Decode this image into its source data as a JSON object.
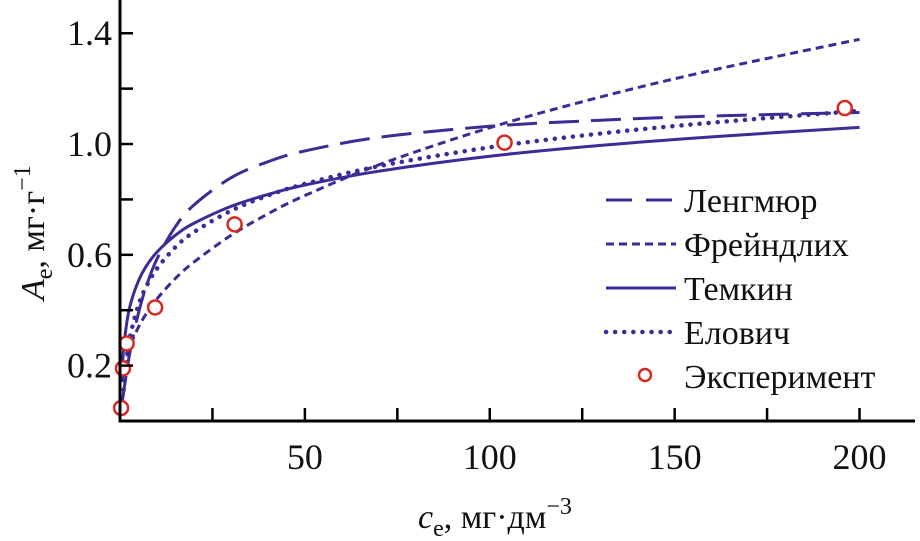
{
  "chart_data": {
    "type": "line",
    "title": "",
    "xlabel": {
      "symbol": "c",
      "subscript": "e",
      "unit": ", мг·дм",
      "unit_sup": "−3"
    },
    "ylabel": {
      "symbol": "A",
      "subscript": "e",
      "unit": ", мг·г",
      "unit_sup": "−1"
    },
    "xlim": [
      0,
      215
    ],
    "ylim": [
      0,
      1.52
    ],
    "x_ticks": [
      50,
      100,
      150,
      200
    ],
    "x_tick_labels": [
      "50",
      "100",
      "150",
      "200"
    ],
    "x_minor_ticks": [
      25,
      75,
      125,
      175
    ],
    "y_ticks": [
      0.2,
      0.6,
      1.0,
      1.4
    ],
    "y_tick_labels": [
      "0.2",
      "0.6",
      "1.0",
      "1.4"
    ],
    "y_minor_ticks": [
      0.4,
      0.8,
      1.2
    ],
    "grid": false,
    "legend_position": "right",
    "color_line": "#3b2c96",
    "color_points": "#d42a22",
    "x": [
      0.5,
      1,
      2,
      3,
      5,
      7,
      10,
      15,
      20,
      30,
      40,
      50,
      70,
      100,
      130,
      160,
      200
    ],
    "series": [
      {
        "name": "Ленгмюр",
        "style": "long-dash",
        "values": [
          0.056,
          0.106,
          0.195,
          0.27,
          0.39,
          0.482,
          0.585,
          0.702,
          0.78,
          0.878,
          0.936,
          0.975,
          1.024,
          1.064,
          1.086,
          1.101,
          1.114
        ]
      },
      {
        "name": "Фрейндлих",
        "style": "short-dash",
        "values": [
          0.141,
          0.184,
          0.239,
          0.279,
          0.339,
          0.385,
          0.441,
          0.515,
          0.574,
          0.67,
          0.748,
          0.814,
          0.925,
          1.059,
          1.17,
          1.266,
          1.378
        ]
      },
      {
        "name": "Темкин",
        "style": "solid",
        "values": [
          0.161,
          0.265,
          0.369,
          0.43,
          0.506,
          0.557,
          0.61,
          0.671,
          0.714,
          0.775,
          0.818,
          0.852,
          0.902,
          0.956,
          0.995,
          1.026,
          1.06
        ]
      },
      {
        "name": "Елович",
        "style": "dotted",
        "values": [
          null,
          0.113,
          0.245,
          0.322,
          0.419,
          0.483,
          0.55,
          0.628,
          0.682,
          0.759,
          0.814,
          0.856,
          0.92,
          0.988,
          1.038,
          1.077,
          1.12
        ]
      }
    ],
    "points": {
      "name": "Эксперимент",
      "x": [
        0.3,
        0.8,
        1.8,
        9.5,
        31,
        104,
        196
      ],
      "y": [
        0.047,
        0.19,
        0.28,
        0.41,
        0.71,
        1.005,
        1.13
      ]
    }
  }
}
